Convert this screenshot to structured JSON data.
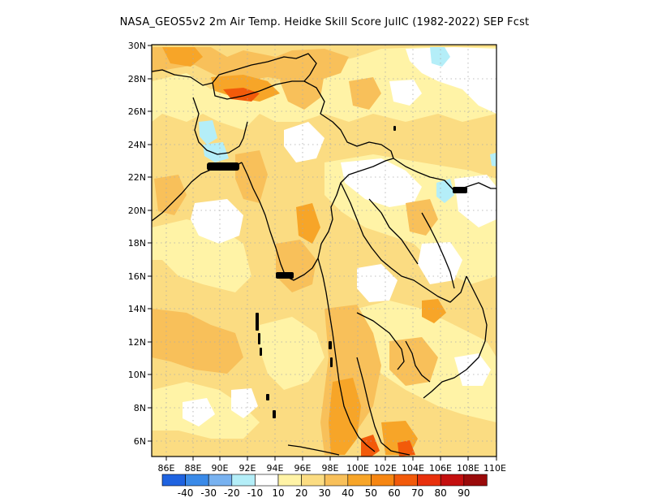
{
  "title": "NASA_GEOS5v2  2m Air Temp. Heidke Skill Score JulIC (1982-2022) SEP Fcst",
  "lon_ticks": [
    "86E",
    "88E",
    "90E",
    "92E",
    "94E",
    "96E",
    "98E",
    "100E",
    "102E",
    "104E",
    "106E",
    "108E",
    "110E"
  ],
  "lat_ticks": [
    "30N",
    "28N",
    "26N",
    "24N",
    "22N",
    "20N",
    "18N",
    "16N",
    "14N",
    "12N",
    "10N",
    "8N",
    "6N"
  ],
  "colorbar": {
    "colors": [
      "#1f63e0",
      "#3a8ae8",
      "#78b2f0",
      "#b4eef8",
      "#ffffff",
      "#fff3a6",
      "#fbdc82",
      "#f8c05a",
      "#f7a528",
      "#f68612",
      "#f25a0a",
      "#e8300c",
      "#c40f0f",
      "#9a0a0a"
    ],
    "labels": [
      "-40",
      "-30",
      "-20",
      "-10",
      "10",
      "20",
      "30",
      "40",
      "50",
      "60",
      "70",
      "80",
      "90"
    ]
  }
}
